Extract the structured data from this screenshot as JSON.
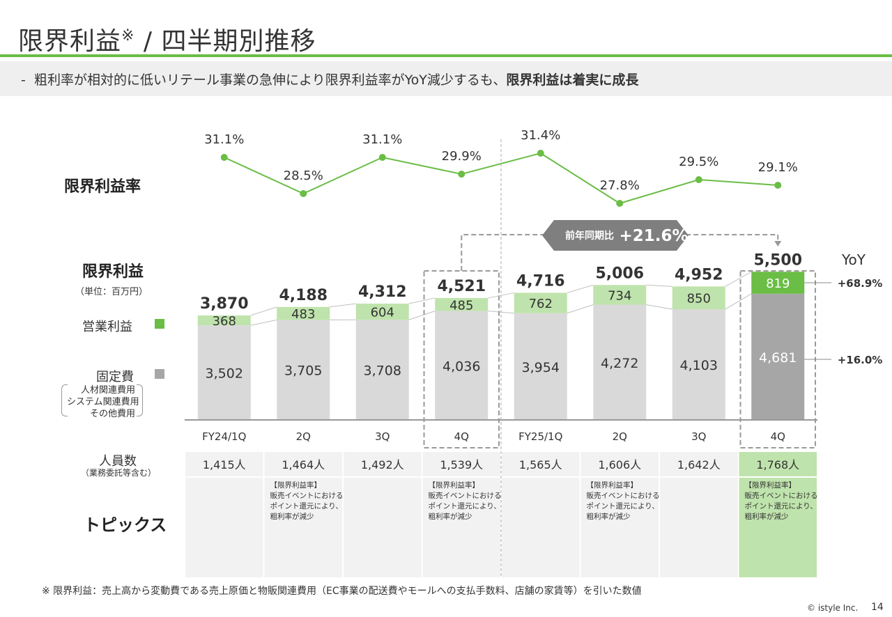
{
  "header": {
    "title": "限界利益",
    "title_mark": "※",
    "title_rest": " / 四半期別推移",
    "subtitle_dash": "-",
    "subtitle_plain": "粗利率が相対的に低いリテール事業の急伸により限界利益率がYoY減少するも、",
    "subtitle_bold": "限界利益は着実に成長"
  },
  "side_labels": {
    "margin_rate": "限界利益率",
    "marginal_profit": "限界利益",
    "unit": "（単位：百万円）",
    "operating_profit": "営業利益",
    "fixed_cost": "固定費",
    "fixed_cost_items": [
      "人材関連費用",
      "システム関連費用",
      "その他費用"
    ],
    "headcount": "人員数",
    "headcount_note": "（業務委託等含む）",
    "topics": "トピックス"
  },
  "chart_data": {
    "type": "bar",
    "stacked": true,
    "categories": [
      "FY24/1Q",
      "2Q",
      "3Q",
      "4Q",
      "FY25/1Q",
      "2Q",
      "3Q",
      "4Q"
    ],
    "series": [
      {
        "name": "固定費",
        "values": [
          3502,
          3705,
          3708,
          4036,
          3954,
          4272,
          4103,
          4681
        ],
        "color": "#d9d9d9",
        "highlight_color": "#a6a6a6"
      },
      {
        "name": "営業利益",
        "values": [
          368,
          483,
          604,
          485,
          762,
          734,
          850,
          819
        ],
        "color": "#bfe3ac",
        "highlight_color": "#6abd45"
      }
    ],
    "totals": [
      3870,
      4188,
      4312,
      4521,
      4716,
      5006,
      4952,
      5500
    ],
    "total_labels": [
      "3,870",
      "4,188",
      "4,312",
      "4,521",
      "4,716",
      "5,006",
      "4,952",
      "5,500"
    ],
    "fixed_labels": [
      "3,502",
      "3,705",
      "3,708",
      "4,036",
      "3,954",
      "4,272",
      "4,103",
      "4,681"
    ],
    "op_labels": [
      "368",
      "483",
      "604",
      "485",
      "762",
      "734",
      "850",
      "819"
    ],
    "rate": {
      "name": "限界利益率",
      "values": [
        31.1,
        28.5,
        31.1,
        29.9,
        31.4,
        27.8,
        29.5,
        29.1
      ],
      "labels": [
        "31.1%",
        "28.5%",
        "31.1%",
        "29.9%",
        "31.4%",
        "27.8%",
        "29.5%",
        "29.1%"
      ],
      "color": "#6abd45"
    },
    "yoy_callout": {
      "label": "前年同期比",
      "value": "+21.6%",
      "from_index": 3,
      "to_index": 7
    },
    "yoy": {
      "title": "YoY",
      "operating_profit": "+68.9%",
      "fixed_cost": "+16.0%"
    },
    "headcount": [
      "1,415人",
      "1,464人",
      "1,492人",
      "1,539人",
      "1,565人",
      "1,606人",
      "1,642人",
      "1,768人"
    ],
    "topics": [
      [],
      [
        "【限界利益率】",
        "販売イベントにおける",
        "ポイント還元により、",
        "粗利率が減少"
      ],
      [],
      [
        "【限界利益率】",
        "販売イベントにおける",
        "ポイント還元により、",
        "粗利率が減少"
      ],
      [],
      [
        "【限界利益率】",
        "販売イベントにおける",
        "ポイント還元により、",
        "粗利率が減少"
      ],
      [],
      [
        "【限界利益率】",
        "販売イベントにおける",
        "ポイント還元により、",
        "粗利率が減少"
      ]
    ],
    "highlight_index": 7,
    "dashed_box_indices": [
      3,
      7
    ],
    "divider_after_index": 3,
    "colors": {
      "accent": "#6abd45",
      "callout": "#7f7f7f",
      "topic_highlight": "#bfe3ac"
    }
  },
  "footer": {
    "footnote": "※ 限界利益：売上高から変動費である売上原価と物販関連費用（EC事業の配送費やモールへの支払手数料、店舗の家賃等）を引いた数値",
    "copyright": "© istyle Inc.",
    "page": "14"
  }
}
